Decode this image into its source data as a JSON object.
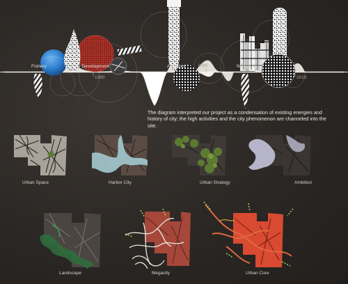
{
  "timeline": {
    "labels": [
      "Fishery",
      "City Development",
      "Activities",
      "Nightmarket"
    ],
    "years": [
      "1980",
      "1990",
      "2010"
    ]
  },
  "description": "The diagram interpreted our project as a condensation of existing energies and history of city; the high activities and the city phenomenon are channeled into the site.",
  "panels": [
    {
      "label": "Urban Space",
      "accent": "#8a8a78"
    },
    {
      "label": "Harbor City",
      "accent": "#9fc3c8"
    },
    {
      "label": "Urban Strategy",
      "accent": "#5d7a32"
    },
    {
      "label": "Ambition",
      "accent": "#b5b4c9"
    },
    {
      "label": "Landscape",
      "accent": "#2f6b3e"
    },
    {
      "label": "Megacity",
      "accent": "#d2cdc4"
    },
    {
      "label": "Urban Core",
      "accent": "#d84a32"
    }
  ],
  "colors": {
    "background": "#2e2a27",
    "timeline_line": "#f2efe9",
    "globe_blue": "#2e7fd0",
    "city_red": "#b8322a",
    "text": "#ece8e2"
  }
}
